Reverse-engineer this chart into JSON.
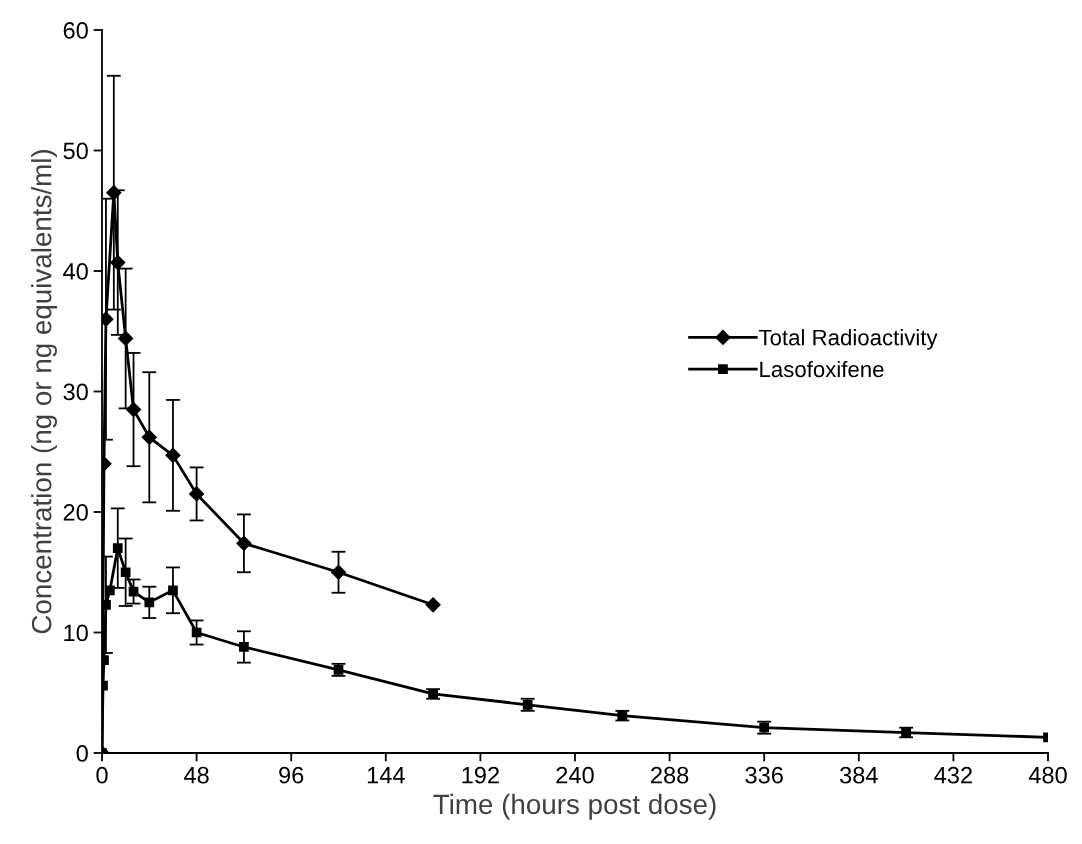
{
  "chart_data": {
    "type": "line",
    "xlabel": "Time (hours post dose)",
    "ylabel": "Concentration (ng or ng equivalents/ml)",
    "xlim": [
      0,
      480
    ],
    "xticks": [
      0,
      48,
      96,
      144,
      192,
      240,
      288,
      336,
      384,
      432,
      480
    ],
    "ylim": [
      0,
      60
    ],
    "yticks": [
      0,
      10,
      20,
      30,
      40,
      50,
      60
    ],
    "legend": "right",
    "line_style": "solid",
    "series": [
      {
        "name": "Total Radioactivity",
        "color": "#000000",
        "marker": "diamond",
        "x": [
          0,
          1,
          2,
          6,
          8,
          12,
          16,
          24,
          36,
          48,
          72,
          120,
          168
        ],
        "values": [
          0,
          24,
          36,
          46.5,
          40.7,
          34.4,
          28.5,
          26.2,
          24.7,
          21.5,
          17.4,
          15,
          12.3
        ],
        "errors": [
          null,
          null,
          10,
          9.7,
          6,
          5.8,
          4.7,
          5.4,
          4.6,
          2.2,
          2.4,
          1.7,
          null
        ]
      },
      {
        "name": "Lasofoxifene",
        "color": "#000000",
        "marker": "square",
        "x": [
          0,
          0.5,
          1,
          2,
          4,
          8,
          12,
          16,
          24,
          36,
          48,
          72,
          120,
          168,
          216,
          264,
          336,
          408,
          480
        ],
        "values": [
          0,
          5.6,
          7.7,
          12.3,
          13.5,
          17,
          15,
          13.4,
          12.5,
          13.5,
          10,
          8.8,
          6.9,
          4.9,
          4,
          3.1,
          2.1,
          1.7,
          1.3
        ],
        "errors": [
          null,
          null,
          null,
          4,
          null,
          3.3,
          2.8,
          1,
          1.3,
          1.9,
          1,
          1.3,
          0.5,
          0.4,
          0.5,
          0.4,
          0.5,
          0.4,
          null
        ]
      }
    ]
  }
}
